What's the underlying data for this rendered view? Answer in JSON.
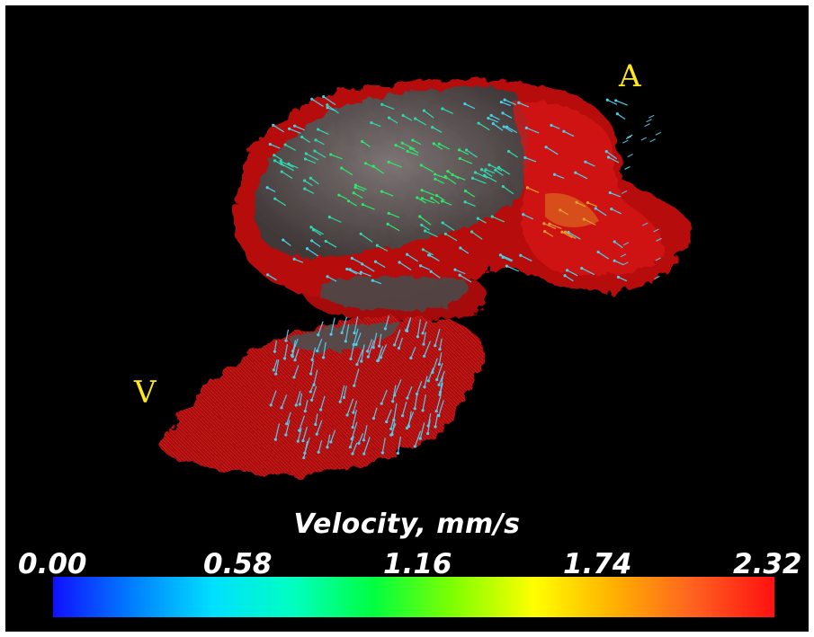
{
  "annotations": {
    "atrium_marker": "A",
    "ventricle_marker": "V"
  },
  "colorbar": {
    "title": "Velocity, mm/s",
    "ticks": [
      "0.00",
      "0.58",
      "1.16",
      "1.74",
      "2.32"
    ],
    "min": 0.0,
    "max": 2.32,
    "colors": [
      "#1010ff",
      "#0080ff",
      "#00e0ff",
      "#00ffc0",
      "#00ff40",
      "#80ff00",
      "#ffff00",
      "#ffb000",
      "#ff6020",
      "#ff1010"
    ]
  },
  "palette": {
    "background": "#000000",
    "tissue": "#cc1010",
    "wall": "#5a5a5a",
    "label": "#ffe81a",
    "text": "#ffffff"
  }
}
